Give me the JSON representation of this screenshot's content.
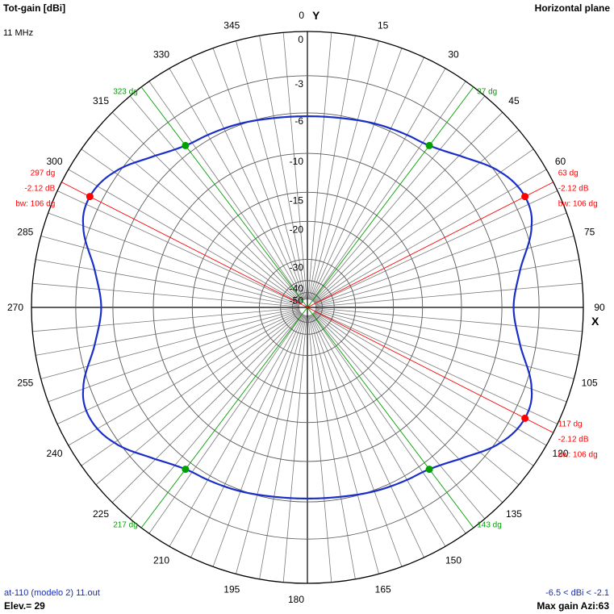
{
  "header": {
    "quantity": "Tot-gain [dBi]",
    "frequency": "11 MHz",
    "plane": "Horizontal plane"
  },
  "footer": {
    "file": "at-110 (modelo 2) 11.out",
    "elevation": "Elev.= 29",
    "range": "-6.5 < dBi < -2.1",
    "max_gain": "Max gain Azi:63"
  },
  "chart_data": {
    "type": "polar",
    "title": "Tot-gain [dBi]",
    "azimuth_labels": [
      "0",
      "15",
      "30",
      "45",
      "60",
      "75",
      "90",
      "105",
      "120",
      "135",
      "150",
      "165",
      "180",
      "195",
      "210",
      "225",
      "240",
      "255",
      "270",
      "285",
      "300",
      "315",
      "330",
      "345"
    ],
    "axis_labels": {
      "y": "Y",
      "x": "X"
    },
    "radial_ticks_db": [
      0,
      -3,
      -6,
      -10,
      -15,
      -20,
      -30,
      -40,
      -50
    ],
    "radial_tick_labels": [
      "0",
      "-3",
      "-6",
      "-10",
      "-15",
      "-20",
      "-30",
      "-40",
      "-50"
    ],
    "series": [
      {
        "color": "#1a2ec8",
        "azimuth_deg": [
          0,
          10,
          20,
          30,
          37,
          45,
          55,
          63,
          70,
          80,
          90,
          100,
          110,
          117,
          125,
          135,
          143,
          150,
          160,
          170,
          180,
          190,
          200,
          210,
          217,
          225,
          235,
          243,
          250,
          260,
          270,
          280,
          290,
          297,
          305,
          315,
          323,
          330,
          340,
          350
        ],
        "gain_dbi": [
          -6.3,
          -6.2,
          -5.9,
          -5.6,
          -5.3,
          -4.3,
          -2.7,
          -2.1,
          -2.5,
          -4.2,
          -5.0,
          -4.2,
          -2.5,
          -2.1,
          -2.7,
          -4.3,
          -5.3,
          -5.6,
          -5.9,
          -6.2,
          -6.3,
          -6.2,
          -5.9,
          -5.6,
          -5.3,
          -4.3,
          -2.7,
          -2.1,
          -2.5,
          -4.2,
          -5.0,
          -4.2,
          -2.5,
          -2.1,
          -2.7,
          -4.3,
          -5.3,
          -5.6,
          -5.9,
          -6.2
        ]
      }
    ],
    "max_markers": [
      {
        "azimuth": 63,
        "angle_label": "63 dg",
        "gain_label": "-2.12 dB",
        "bw_label": "bw: 106 dg"
      },
      {
        "azimuth": 117,
        "angle_label": "117 dg",
        "gain_label": "-2.12 dB",
        "bw_label": "bw: 106 dg"
      },
      {
        "azimuth": 297,
        "angle_label": "297 dg",
        "gain_label": "-2.12 dB",
        "bw_label": "bw: 106 dg"
      }
    ],
    "beamwidth_markers": [
      {
        "azimuth": 37,
        "label": "37 dg"
      },
      {
        "azimuth": 143,
        "label": "143 dg"
      },
      {
        "azimuth": 217,
        "label": "217 dg"
      },
      {
        "azimuth": 323,
        "label": "323 dg"
      }
    ],
    "colors": {
      "pattern": "#1a2ec8",
      "max": "#ff0000",
      "beamwidth": "#00a000",
      "grid": "#000000"
    }
  }
}
